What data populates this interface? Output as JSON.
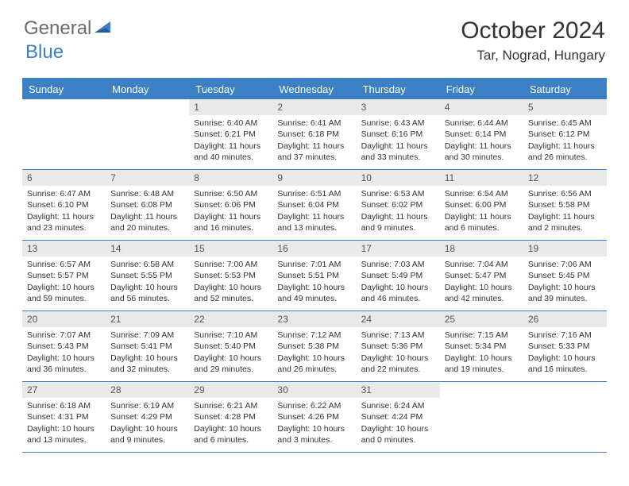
{
  "logo": {
    "word1": "General",
    "word2": "Blue"
  },
  "title": "October 2024",
  "location": "Tar, Nograd, Hungary",
  "colors": {
    "header_bg": "#3b7fc4",
    "header_text": "#ffffff",
    "daynum_bg": "#e9e9e9",
    "border": "#3b7fc4",
    "text": "#333333",
    "logo_gray": "#6b6b6b",
    "logo_blue": "#3b7fc4"
  },
  "day_names": [
    "Sunday",
    "Monday",
    "Tuesday",
    "Wednesday",
    "Thursday",
    "Friday",
    "Saturday"
  ],
  "weeks": [
    [
      {
        "n": "",
        "sr": "",
        "ss": "",
        "dl": ""
      },
      {
        "n": "",
        "sr": "",
        "ss": "",
        "dl": ""
      },
      {
        "n": "1",
        "sr": "Sunrise: 6:40 AM",
        "ss": "Sunset: 6:21 PM",
        "dl": "Daylight: 11 hours and 40 minutes."
      },
      {
        "n": "2",
        "sr": "Sunrise: 6:41 AM",
        "ss": "Sunset: 6:18 PM",
        "dl": "Daylight: 11 hours and 37 minutes."
      },
      {
        "n": "3",
        "sr": "Sunrise: 6:43 AM",
        "ss": "Sunset: 6:16 PM",
        "dl": "Daylight: 11 hours and 33 minutes."
      },
      {
        "n": "4",
        "sr": "Sunrise: 6:44 AM",
        "ss": "Sunset: 6:14 PM",
        "dl": "Daylight: 11 hours and 30 minutes."
      },
      {
        "n": "5",
        "sr": "Sunrise: 6:45 AM",
        "ss": "Sunset: 6:12 PM",
        "dl": "Daylight: 11 hours and 26 minutes."
      }
    ],
    [
      {
        "n": "6",
        "sr": "Sunrise: 6:47 AM",
        "ss": "Sunset: 6:10 PM",
        "dl": "Daylight: 11 hours and 23 minutes."
      },
      {
        "n": "7",
        "sr": "Sunrise: 6:48 AM",
        "ss": "Sunset: 6:08 PM",
        "dl": "Daylight: 11 hours and 20 minutes."
      },
      {
        "n": "8",
        "sr": "Sunrise: 6:50 AM",
        "ss": "Sunset: 6:06 PM",
        "dl": "Daylight: 11 hours and 16 minutes."
      },
      {
        "n": "9",
        "sr": "Sunrise: 6:51 AM",
        "ss": "Sunset: 6:04 PM",
        "dl": "Daylight: 11 hours and 13 minutes."
      },
      {
        "n": "10",
        "sr": "Sunrise: 6:53 AM",
        "ss": "Sunset: 6:02 PM",
        "dl": "Daylight: 11 hours and 9 minutes."
      },
      {
        "n": "11",
        "sr": "Sunrise: 6:54 AM",
        "ss": "Sunset: 6:00 PM",
        "dl": "Daylight: 11 hours and 6 minutes."
      },
      {
        "n": "12",
        "sr": "Sunrise: 6:56 AM",
        "ss": "Sunset: 5:58 PM",
        "dl": "Daylight: 11 hours and 2 minutes."
      }
    ],
    [
      {
        "n": "13",
        "sr": "Sunrise: 6:57 AM",
        "ss": "Sunset: 5:57 PM",
        "dl": "Daylight: 10 hours and 59 minutes."
      },
      {
        "n": "14",
        "sr": "Sunrise: 6:58 AM",
        "ss": "Sunset: 5:55 PM",
        "dl": "Daylight: 10 hours and 56 minutes."
      },
      {
        "n": "15",
        "sr": "Sunrise: 7:00 AM",
        "ss": "Sunset: 5:53 PM",
        "dl": "Daylight: 10 hours and 52 minutes."
      },
      {
        "n": "16",
        "sr": "Sunrise: 7:01 AM",
        "ss": "Sunset: 5:51 PM",
        "dl": "Daylight: 10 hours and 49 minutes."
      },
      {
        "n": "17",
        "sr": "Sunrise: 7:03 AM",
        "ss": "Sunset: 5:49 PM",
        "dl": "Daylight: 10 hours and 46 minutes."
      },
      {
        "n": "18",
        "sr": "Sunrise: 7:04 AM",
        "ss": "Sunset: 5:47 PM",
        "dl": "Daylight: 10 hours and 42 minutes."
      },
      {
        "n": "19",
        "sr": "Sunrise: 7:06 AM",
        "ss": "Sunset: 5:45 PM",
        "dl": "Daylight: 10 hours and 39 minutes."
      }
    ],
    [
      {
        "n": "20",
        "sr": "Sunrise: 7:07 AM",
        "ss": "Sunset: 5:43 PM",
        "dl": "Daylight: 10 hours and 36 minutes."
      },
      {
        "n": "21",
        "sr": "Sunrise: 7:09 AM",
        "ss": "Sunset: 5:41 PM",
        "dl": "Daylight: 10 hours and 32 minutes."
      },
      {
        "n": "22",
        "sr": "Sunrise: 7:10 AM",
        "ss": "Sunset: 5:40 PM",
        "dl": "Daylight: 10 hours and 29 minutes."
      },
      {
        "n": "23",
        "sr": "Sunrise: 7:12 AM",
        "ss": "Sunset: 5:38 PM",
        "dl": "Daylight: 10 hours and 26 minutes."
      },
      {
        "n": "24",
        "sr": "Sunrise: 7:13 AM",
        "ss": "Sunset: 5:36 PM",
        "dl": "Daylight: 10 hours and 22 minutes."
      },
      {
        "n": "25",
        "sr": "Sunrise: 7:15 AM",
        "ss": "Sunset: 5:34 PM",
        "dl": "Daylight: 10 hours and 19 minutes."
      },
      {
        "n": "26",
        "sr": "Sunrise: 7:16 AM",
        "ss": "Sunset: 5:33 PM",
        "dl": "Daylight: 10 hours and 16 minutes."
      }
    ],
    [
      {
        "n": "27",
        "sr": "Sunrise: 6:18 AM",
        "ss": "Sunset: 4:31 PM",
        "dl": "Daylight: 10 hours and 13 minutes."
      },
      {
        "n": "28",
        "sr": "Sunrise: 6:19 AM",
        "ss": "Sunset: 4:29 PM",
        "dl": "Daylight: 10 hours and 9 minutes."
      },
      {
        "n": "29",
        "sr": "Sunrise: 6:21 AM",
        "ss": "Sunset: 4:28 PM",
        "dl": "Daylight: 10 hours and 6 minutes."
      },
      {
        "n": "30",
        "sr": "Sunrise: 6:22 AM",
        "ss": "Sunset: 4:26 PM",
        "dl": "Daylight: 10 hours and 3 minutes."
      },
      {
        "n": "31",
        "sr": "Sunrise: 6:24 AM",
        "ss": "Sunset: 4:24 PM",
        "dl": "Daylight: 10 hours and 0 minutes."
      },
      {
        "n": "",
        "sr": "",
        "ss": "",
        "dl": ""
      },
      {
        "n": "",
        "sr": "",
        "ss": "",
        "dl": ""
      }
    ]
  ]
}
